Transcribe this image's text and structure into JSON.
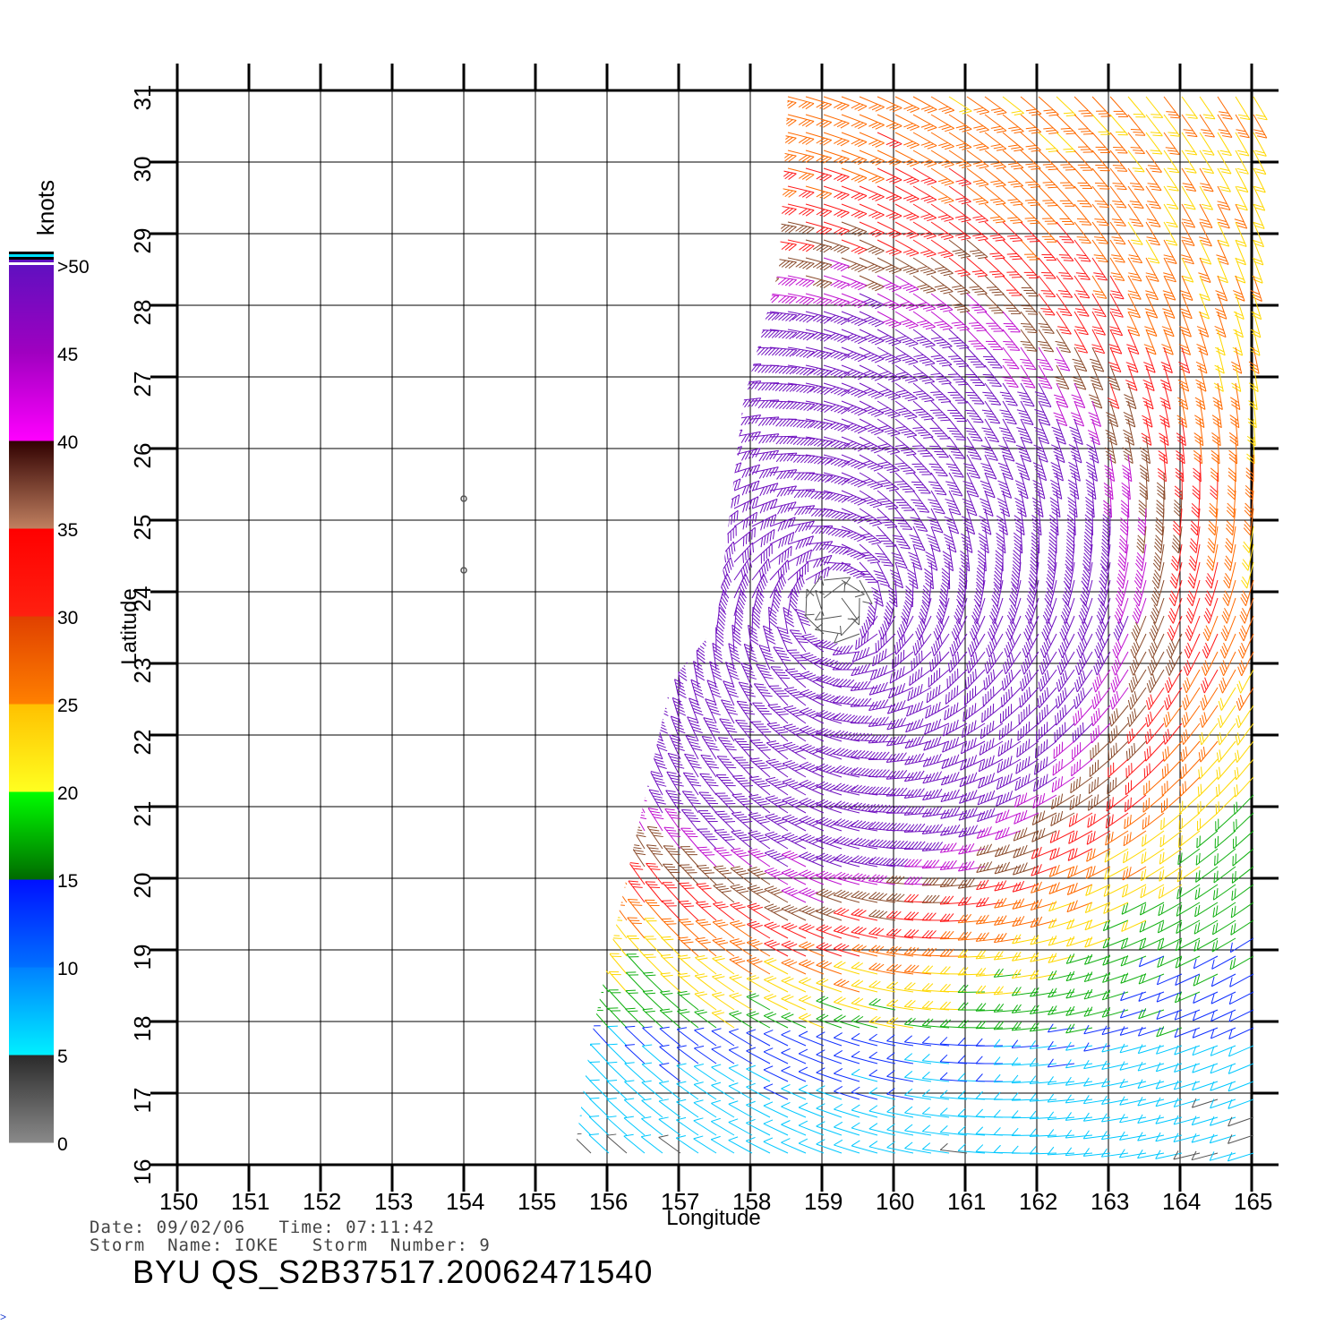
{
  "map": {
    "lon_range": [
      150,
      165
    ],
    "lat_range": [
      16,
      31
    ],
    "x_ticks": [
      150,
      151,
      152,
      153,
      154,
      155,
      156,
      157,
      158,
      159,
      160,
      161,
      162,
      163,
      164,
      165
    ],
    "y_ticks": [
      16,
      17,
      18,
      19,
      20,
      21,
      22,
      23,
      24,
      25,
      26,
      27,
      28,
      29,
      30,
      31
    ],
    "xlabel": "Longitude",
    "ylabel": "Latitude",
    "grid": true,
    "frame_color": "#000000",
    "grid_color": "#000000"
  },
  "colorbar": {
    "title": "knots",
    "labels": [
      "0",
      "5",
      "10",
      "15",
      "20",
      "25",
      "30",
      "35",
      "40",
      "45",
      ">50"
    ],
    "bands": [
      {
        "range": [
          0,
          5
        ],
        "from": "#8a8a8a",
        "to": "#2a2a2a"
      },
      {
        "range": [
          5,
          10
        ],
        "from": "#00f0ff",
        "to": "#0080ff"
      },
      {
        "range": [
          10,
          15
        ],
        "from": "#0070ff",
        "to": "#0010ff"
      },
      {
        "range": [
          15,
          20
        ],
        "from": "#006a00",
        "to": "#00ff00"
      },
      {
        "range": [
          20,
          25
        ],
        "from": "#ffff20",
        "to": "#ffc000"
      },
      {
        "range": [
          25,
          30
        ],
        "from": "#ff8000",
        "to": "#e04000"
      },
      {
        "range": [
          30,
          35
        ],
        "from": "#ff2010",
        "to": "#ff0000"
      },
      {
        "range": [
          35,
          40
        ],
        "from": "#c08060",
        "to": "#300000"
      },
      {
        "range": [
          40,
          45
        ],
        "from": "#ff00ff",
        "to": "#a000c0"
      },
      {
        "range": [
          45,
          50
        ],
        "from": "#a000c0",
        "to": "#6010c0"
      }
    ]
  },
  "wind_field": {
    "center": [
      159.2,
      23.8
    ],
    "swath_colors_note_speeds": true,
    "markers": [
      [
        154.0,
        25.3
      ],
      [
        154.0,
        24.3
      ]
    ]
  },
  "info": {
    "date_line": "Date: 09/02/06   Time: 07:11:42",
    "storm_line": "Storm  Name: IOKE   Storm  Number: 9"
  },
  "file_id": "BYU  QS_S2B37517.20062471540"
}
